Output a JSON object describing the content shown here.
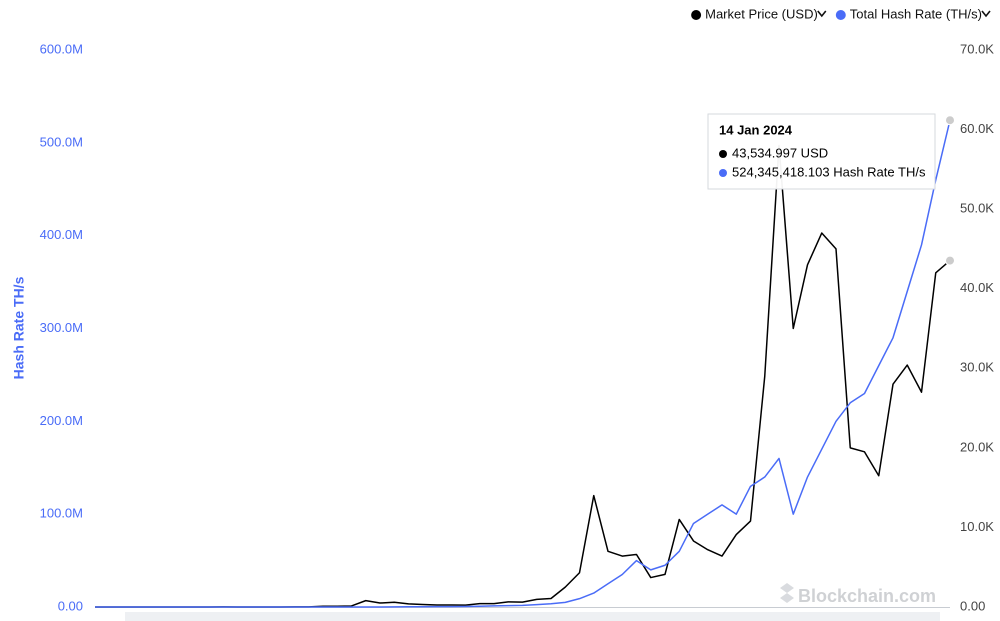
{
  "chart_data": {
    "type": "line",
    "y_axis_label": "Hash Rate TH/s",
    "watermark": "Blockchain.com",
    "grid": false,
    "legend_position": "top-right",
    "ylim": [
      0,
      600000000
    ],
    "yticks": [
      {
        "value": 0,
        "label": "0.00"
      },
      {
        "value": 100000000,
        "label": "100.0M"
      },
      {
        "value": 200000000,
        "label": "200.0M"
      },
      {
        "value": 300000000,
        "label": "300.0M"
      },
      {
        "value": 400000000,
        "label": "400.0M"
      },
      {
        "value": 500000000,
        "label": "500.0M"
      },
      {
        "value": 600000000,
        "label": "600.0M"
      }
    ],
    "y2lim": [
      0,
      70000
    ],
    "y2ticks": [
      {
        "value": 0,
        "label": "0.00"
      },
      {
        "value": 10000,
        "label": "10.0K"
      },
      {
        "value": 20000,
        "label": "20.0K"
      },
      {
        "value": 30000,
        "label": "30.0K"
      },
      {
        "value": 40000,
        "label": "40.0K"
      },
      {
        "value": 50000,
        "label": "50.0K"
      },
      {
        "value": 60000,
        "label": "60.0K"
      },
      {
        "value": 70000,
        "label": "70.0K"
      }
    ],
    "series": [
      {
        "name": "Market Price (USD)",
        "color": "#000000",
        "axis": "y2",
        "values": [
          0,
          0,
          0,
          0,
          0,
          0,
          0.06,
          0.3,
          0.9,
          17,
          5,
          3,
          5,
          6,
          12,
          13,
          90,
          100,
          130,
          800,
          500,
          600,
          400,
          320,
          250,
          250,
          240,
          430,
          420,
          650,
          610,
          960,
          1070,
          2500,
          4300,
          14000,
          7000,
          6400,
          6600,
          3700,
          4100,
          11000,
          8300,
          7200,
          6400,
          9100,
          10800,
          29000,
          58000,
          35000,
          43000,
          47000,
          45000,
          20000,
          19500,
          16500,
          28000,
          30400,
          27000,
          42000,
          43534.997
        ]
      },
      {
        "name": "Total Hash Rate (TH/s)",
        "color": "#4a6cf7",
        "axis": "y",
        "values": [
          0,
          0,
          0,
          0,
          0,
          0,
          0,
          0,
          0,
          0,
          0,
          0,
          10,
          15,
          20,
          25,
          50,
          150,
          500,
          7000,
          30000,
          100000,
          250000,
          300000,
          350000,
          400000,
          500000,
          800000,
          1200000,
          1500000,
          1800000,
          2500000,
          3500000,
          5000000,
          9000000,
          15000000,
          25000000,
          35000000,
          50000000,
          40000000,
          45000000,
          60000000,
          90000000,
          100000000,
          110000000,
          100000000,
          130000000,
          140000000,
          160000000,
          100000000,
          140000000,
          170000000,
          200000000,
          220000000,
          230000000,
          260000000,
          290000000,
          340000000,
          390000000,
          460000000,
          524345418.103
        ]
      }
    ],
    "tooltip": {
      "date": "14 Jan 2024",
      "lines": [
        "43,534.997 USD",
        "524,345,418.103 Hash Rate TH/s"
      ]
    }
  }
}
